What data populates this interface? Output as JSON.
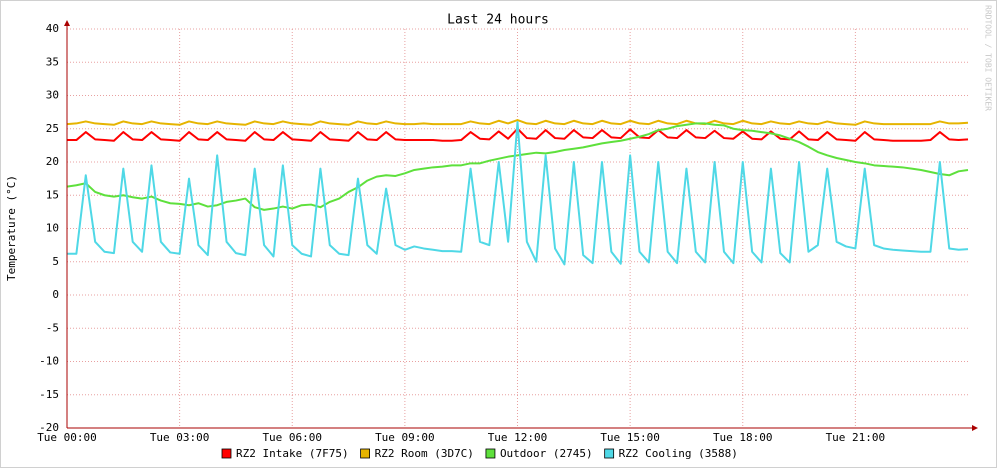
{
  "chart_data": {
    "type": "line",
    "title": "Last 24 hours",
    "y_label": "Temperature (°C)",
    "watermark": "RRDTOOL / TOBI OETIKER",
    "x": [
      0,
      0.25,
      0.5,
      0.75,
      1,
      1.25,
      1.5,
      1.75,
      2,
      2.25,
      2.5,
      2.75,
      3,
      3.25,
      3.5,
      3.75,
      4,
      4.25,
      4.5,
      4.75,
      5,
      5.25,
      5.5,
      5.75,
      6,
      6.25,
      6.5,
      6.75,
      7,
      7.25,
      7.5,
      7.75,
      8,
      8.25,
      8.5,
      8.75,
      9,
      9.25,
      9.5,
      9.75,
      10,
      10.25,
      10.5,
      10.75,
      11,
      11.25,
      11.5,
      11.75,
      12,
      12.25,
      12.5,
      12.75,
      13,
      13.25,
      13.5,
      13.75,
      14,
      14.25,
      14.5,
      14.75,
      15,
      15.25,
      15.5,
      15.75,
      16,
      16.25,
      16.5,
      16.75,
      17,
      17.25,
      17.5,
      17.75,
      18,
      18.25,
      18.5,
      18.75,
      19,
      19.25,
      19.5,
      19.75,
      20,
      20.25,
      20.5,
      20.75,
      21,
      21.25,
      21.5,
      21.75,
      22,
      22.25,
      22.5,
      22.75,
      23,
      23.25,
      23.5,
      23.75,
      24
    ],
    "xlim": [
      0,
      24
    ],
    "xticks": [
      {
        "value": 0,
        "label": "Tue 00:00"
      },
      {
        "value": 3,
        "label": "Tue 03:00"
      },
      {
        "value": 6,
        "label": "Tue 06:00"
      },
      {
        "value": 9,
        "label": "Tue 09:00"
      },
      {
        "value": 12,
        "label": "Tue 12:00"
      },
      {
        "value": 15,
        "label": "Tue 15:00"
      },
      {
        "value": 18,
        "label": "Tue 18:00"
      },
      {
        "value": 21,
        "label": "Tue 21:00"
      }
    ],
    "ylim": [
      -20,
      40
    ],
    "yticks": [
      -20,
      -15,
      -10,
      -5,
      0,
      5,
      10,
      15,
      20,
      25,
      30,
      35,
      40
    ],
    "grid": true,
    "series": [
      {
        "name": "RZ2 Intake (7F75)",
        "color": "#ff0000",
        "values": [
          23.3,
          23.3,
          24.5,
          23.4,
          23.3,
          23.2,
          24.5,
          23.4,
          23.3,
          24.5,
          23.4,
          23.3,
          23.2,
          24.5,
          23.4,
          23.3,
          24.5,
          23.4,
          23.3,
          23.2,
          24.5,
          23.4,
          23.3,
          24.5,
          23.4,
          23.3,
          23.2,
          24.5,
          23.4,
          23.3,
          23.2,
          24.5,
          23.4,
          23.3,
          24.5,
          23.4,
          23.3,
          23.3,
          23.3,
          23.3,
          23.2,
          23.2,
          23.3,
          24.5,
          23.5,
          23.4,
          24.6,
          23.5,
          25,
          23.6,
          23.5,
          24.8,
          23.6,
          23.5,
          24.8,
          23.7,
          23.6,
          24.8,
          23.7,
          23.6,
          24.9,
          23.7,
          23.6,
          24.8,
          23.7,
          23.6,
          24.8,
          23.7,
          23.6,
          24.7,
          23.6,
          23.5,
          24.6,
          23.5,
          23.4,
          24.6,
          23.5,
          23.4,
          24.6,
          23.4,
          23.3,
          24.5,
          23.4,
          23.3,
          23.2,
          24.5,
          23.4,
          23.3,
          23.2,
          23.2,
          23.2,
          23.2,
          23.3,
          24.5,
          23.4,
          23.3,
          23.4
        ]
      },
      {
        "name": "RZ2 Room (3D7C)",
        "color": "#e6b400",
        "values": [
          25.7,
          25.8,
          26.1,
          25.8,
          25.7,
          25.6,
          26.1,
          25.8,
          25.7,
          26.1,
          25.8,
          25.7,
          25.6,
          26.1,
          25.8,
          25.7,
          26.1,
          25.8,
          25.7,
          25.6,
          26.1,
          25.8,
          25.7,
          26.1,
          25.8,
          25.7,
          25.6,
          26.1,
          25.8,
          25.7,
          25.6,
          26.1,
          25.8,
          25.7,
          26.1,
          25.8,
          25.7,
          25.7,
          25.8,
          25.7,
          25.7,
          25.7,
          25.7,
          26.1,
          25.8,
          25.7,
          26.2,
          25.8,
          26.3,
          25.8,
          25.7,
          26.2,
          25.8,
          25.7,
          26.2,
          25.8,
          25.7,
          26.2,
          25.8,
          25.7,
          26.2,
          25.8,
          25.7,
          26.2,
          25.8,
          25.7,
          26.2,
          25.8,
          25.7,
          26.2,
          25.8,
          25.7,
          26.2,
          25.8,
          25.7,
          26.1,
          25.8,
          25.7,
          26.1,
          25.8,
          25.7,
          26.1,
          25.8,
          25.7,
          25.6,
          26.1,
          25.8,
          25.7,
          25.7,
          25.7,
          25.7,
          25.7,
          25.7,
          26.1,
          25.8,
          25.8,
          25.9
        ]
      },
      {
        "name": "Outdoor (2745)",
        "color": "#5ee03c",
        "values": [
          16.3,
          16.5,
          16.8,
          15.5,
          15,
          14.8,
          15,
          14.7,
          14.5,
          14.8,
          14.2,
          13.8,
          13.7,
          13.5,
          13.8,
          13.3,
          13.5,
          14,
          14.2,
          14.5,
          13.2,
          12.8,
          13,
          13.3,
          13,
          13.5,
          13.6,
          13.2,
          14,
          14.5,
          15.5,
          16.2,
          17.2,
          17.8,
          18,
          17.9,
          18.3,
          18.8,
          19,
          19.2,
          19.3,
          19.5,
          19.5,
          19.8,
          19.8,
          20.2,
          20.5,
          20.8,
          21,
          21.2,
          21.4,
          21.3,
          21.5,
          21.8,
          22,
          22.2,
          22.5,
          22.8,
          23,
          23.2,
          23.5,
          23.8,
          24.2,
          24.8,
          25,
          25.4,
          25.6,
          25.8,
          25.8,
          25.6,
          25.5,
          25,
          24.8,
          24.7,
          24.5,
          24.3,
          24,
          23.5,
          23,
          22.3,
          21.5,
          21,
          20.6,
          20.3,
          20,
          19.8,
          19.5,
          19.4,
          19.3,
          19.2,
          19,
          18.8,
          18.5,
          18.2,
          18,
          18.6,
          18.8
        ]
      },
      {
        "name": "RZ2 Cooling (3588)",
        "color": "#4fd8e6",
        "values": [
          6.2,
          6.2,
          18,
          8,
          6.5,
          6.3,
          19,
          8,
          6.5,
          19.5,
          8,
          6.4,
          6.2,
          17.5,
          7.5,
          6,
          21,
          8,
          6.3,
          6,
          19,
          7.5,
          5.8,
          19.5,
          7.5,
          6.2,
          5.8,
          19,
          7.5,
          6.2,
          6,
          17.5,
          7.5,
          6.2,
          16,
          7.5,
          6.8,
          7.3,
          7,
          6.8,
          6.6,
          6.6,
          6.5,
          19,
          8,
          7.5,
          20,
          8,
          26,
          8,
          5,
          21,
          7,
          4.6,
          20,
          6,
          4.8,
          20,
          6.5,
          4.7,
          21,
          6.5,
          4.9,
          20,
          6.5,
          4.8,
          19,
          6.5,
          4.9,
          20,
          6.5,
          4.8,
          20,
          6.5,
          4.9,
          19,
          6.3,
          4.9,
          20,
          6.5,
          7.5,
          19,
          8,
          7.3,
          7,
          19,
          7.5,
          7,
          6.8,
          6.7,
          6.6,
          6.5,
          6.5,
          20,
          7,
          6.8,
          6.9
        ]
      }
    ]
  }
}
